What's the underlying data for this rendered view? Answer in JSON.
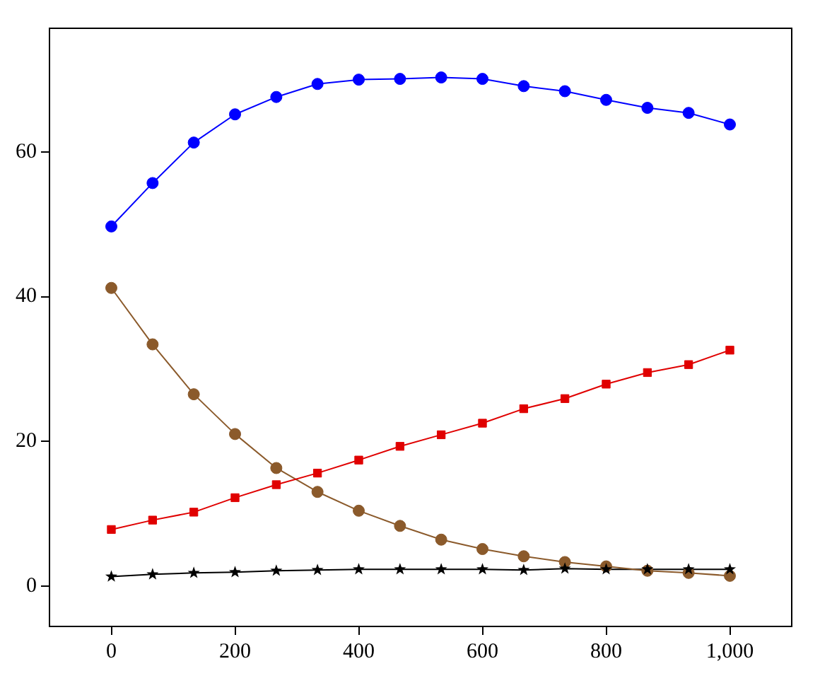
{
  "chart_data": {
    "type": "line",
    "x": [
      0,
      66.7,
      133.3,
      200,
      266.7,
      333.3,
      400,
      466.7,
      533.3,
      600,
      666.7,
      733.3,
      800,
      866.7,
      933.3,
      1000
    ],
    "xlim": [
      -100,
      1100
    ],
    "xticks": [
      0,
      200,
      400,
      600,
      800,
      {
        "value": 1000,
        "label": "1,000"
      }
    ],
    "ylim": [
      -5.6,
      77.1
    ],
    "yticks": [
      0,
      20,
      40,
      60
    ],
    "grid": false,
    "legend": false,
    "series": [
      {
        "color": "#0000ff",
        "marker": "circle",
        "values": [
          49.7,
          55.7,
          61.3,
          65.2,
          67.6,
          69.4,
          70,
          70.1,
          70.3,
          70.1,
          69.1,
          68.4,
          67.2,
          66.1,
          65.4,
          63.8
        ]
      },
      {
        "color": "#e00000",
        "marker": "square",
        "values": [
          7.8,
          9.1,
          10.2,
          12.2,
          14,
          15.6,
          17.4,
          19.3,
          20.9,
          22.5,
          24.5,
          25.9,
          27.9,
          29.5,
          30.6,
          32.6
        ]
      },
      {
        "color": "#8b5a2b",
        "marker": "circle",
        "values": [
          41.2,
          33.4,
          26.5,
          21,
          16.3,
          13,
          10.4,
          8.3,
          6.4,
          5.1,
          4.1,
          3.3,
          2.7,
          2.1,
          1.8,
          1.4
        ]
      },
      {
        "color": "#000000",
        "marker": "star",
        "values": [
          1.3,
          1.6,
          1.8,
          1.9,
          2.1,
          2.2,
          2.3,
          2.3,
          2.3,
          2.3,
          2.2,
          2.4,
          2.3,
          2.3,
          2.3,
          2.3
        ]
      }
    ]
  }
}
